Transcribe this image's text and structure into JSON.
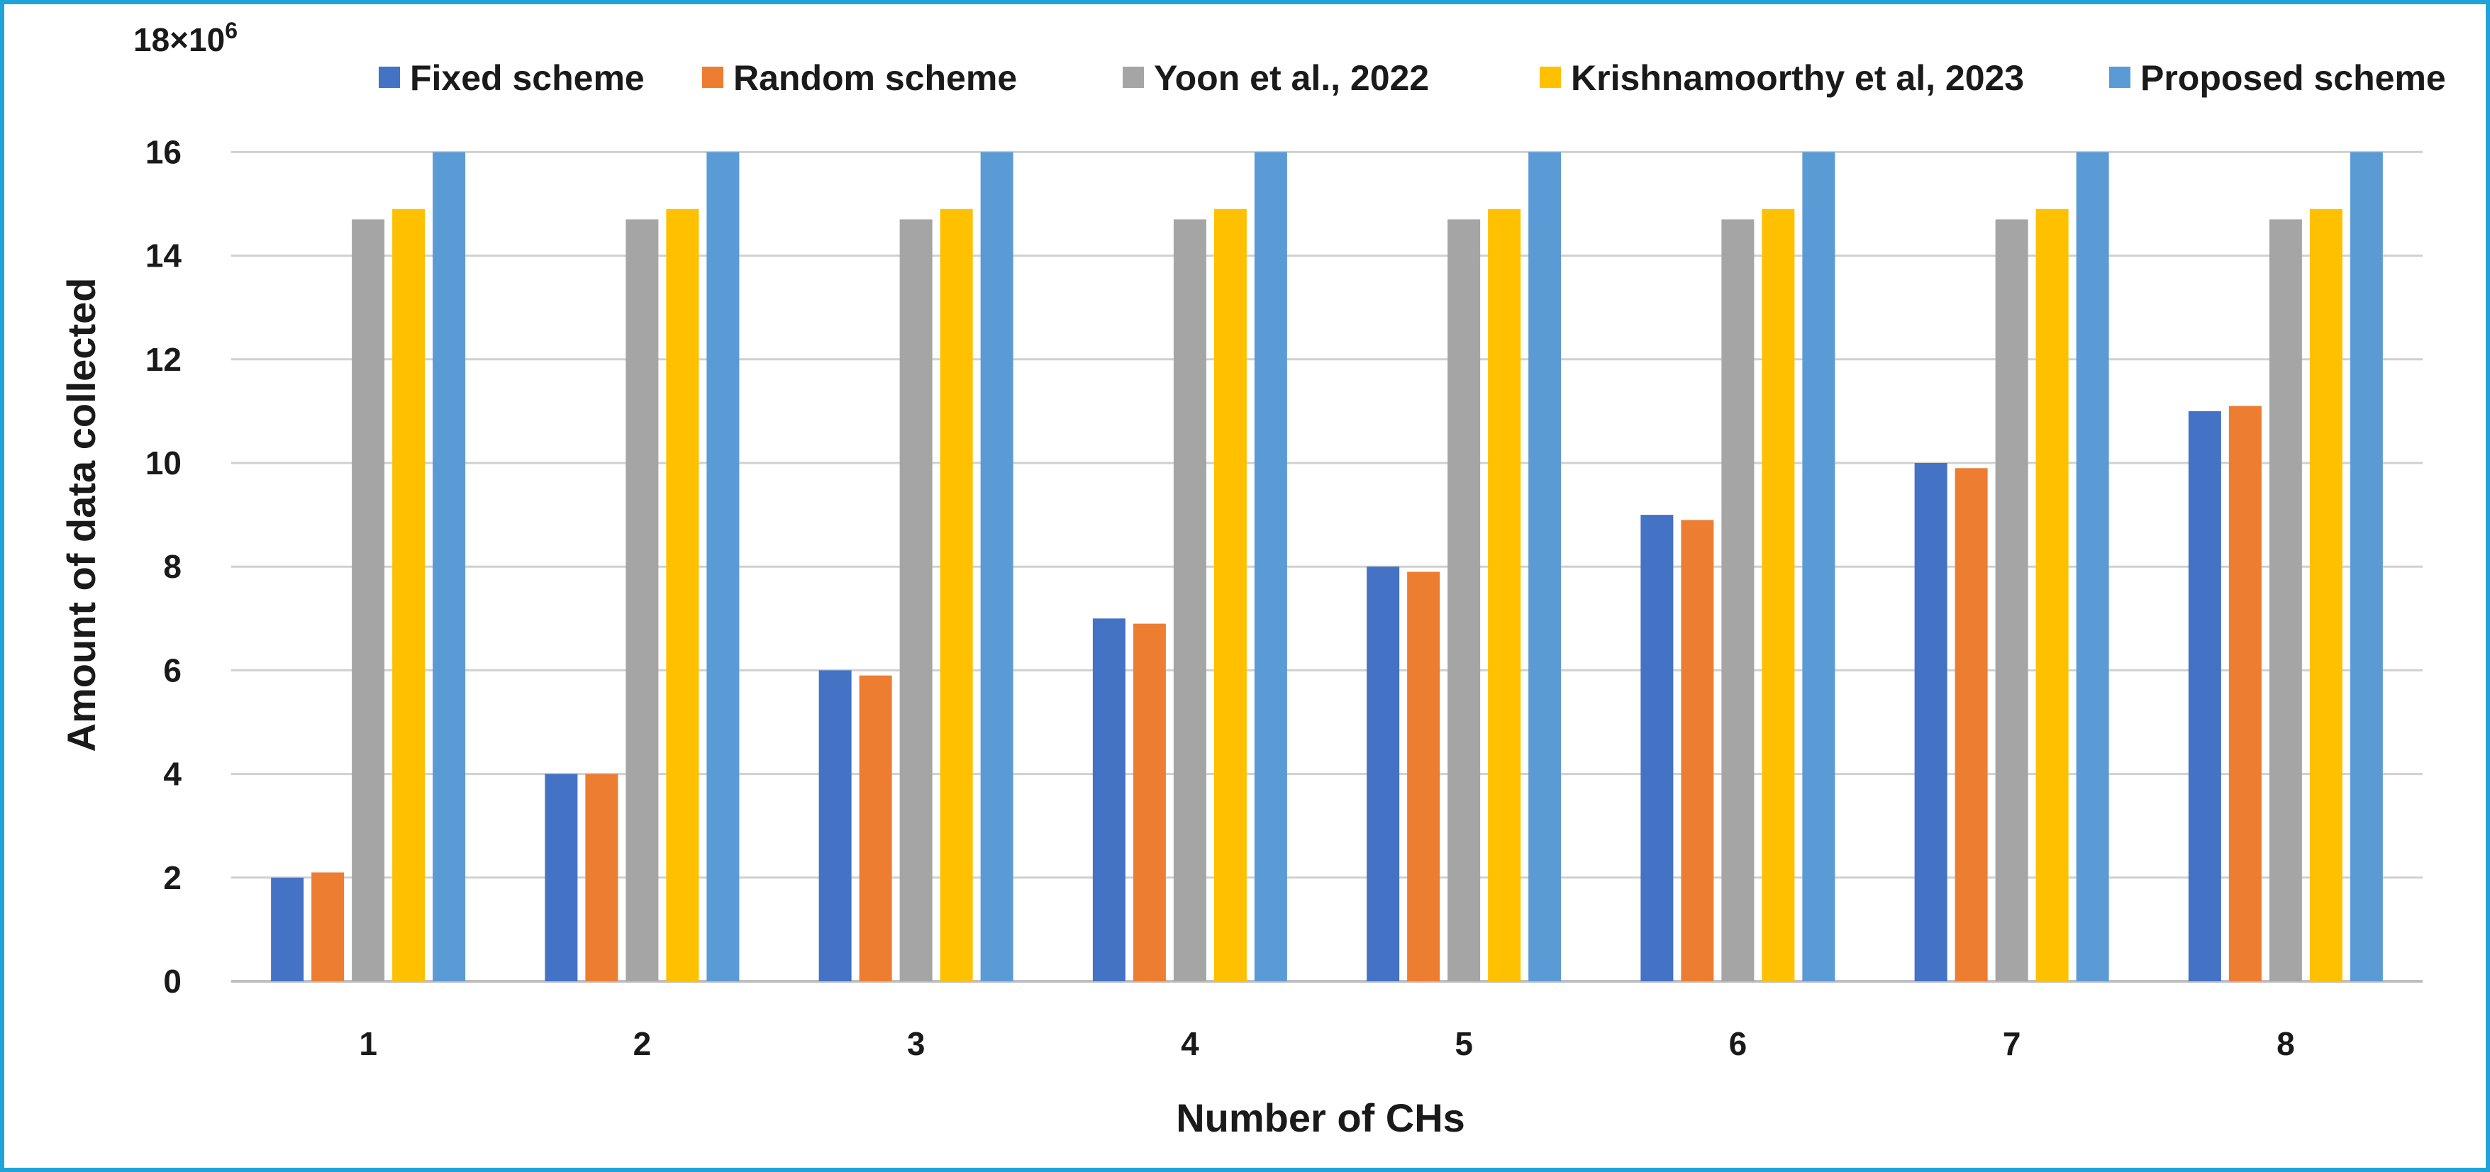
{
  "chart_data": {
    "type": "bar",
    "title": "",
    "xlabel": "Number of CHs",
    "ylabel": "Amount of data collected",
    "y_multiplier_label": "×10",
    "y_multiplier_exponent": "6",
    "y_top_tick": "18",
    "categories": [
      "1",
      "2",
      "3",
      "4",
      "5",
      "6",
      "7",
      "8"
    ],
    "yticks": [
      "0",
      "2",
      "4",
      "6",
      "8",
      "10",
      "12",
      "14",
      "16"
    ],
    "ylim": [
      0,
      18
    ],
    "grid": true,
    "legend_position": "top",
    "series": [
      {
        "name": "Fixed scheme",
        "color": "#4472c4",
        "values": [
          2,
          4,
          6,
          7,
          8,
          9,
          10,
          11
        ]
      },
      {
        "name": "Random scheme",
        "color": "#ed7d31",
        "values": [
          2.1,
          4,
          5.9,
          6.9,
          7.9,
          8.9,
          9.9,
          11.1
        ]
      },
      {
        "name": "Yoon et al., 2022",
        "color": "#a5a5a5",
        "values": [
          14.7,
          14.7,
          14.7,
          14.7,
          14.7,
          14.7,
          14.7,
          14.7
        ]
      },
      {
        "name": "Krishnamoorthy et al, 2023",
        "color": "#ffc000",
        "values": [
          14.9,
          14.9,
          14.9,
          14.9,
          14.9,
          14.9,
          14.9,
          14.9
        ]
      },
      {
        "name": "Proposed scheme",
        "color": "#5b9bd5",
        "values": [
          16,
          16,
          16,
          16,
          16,
          16,
          16,
          16
        ]
      }
    ]
  }
}
